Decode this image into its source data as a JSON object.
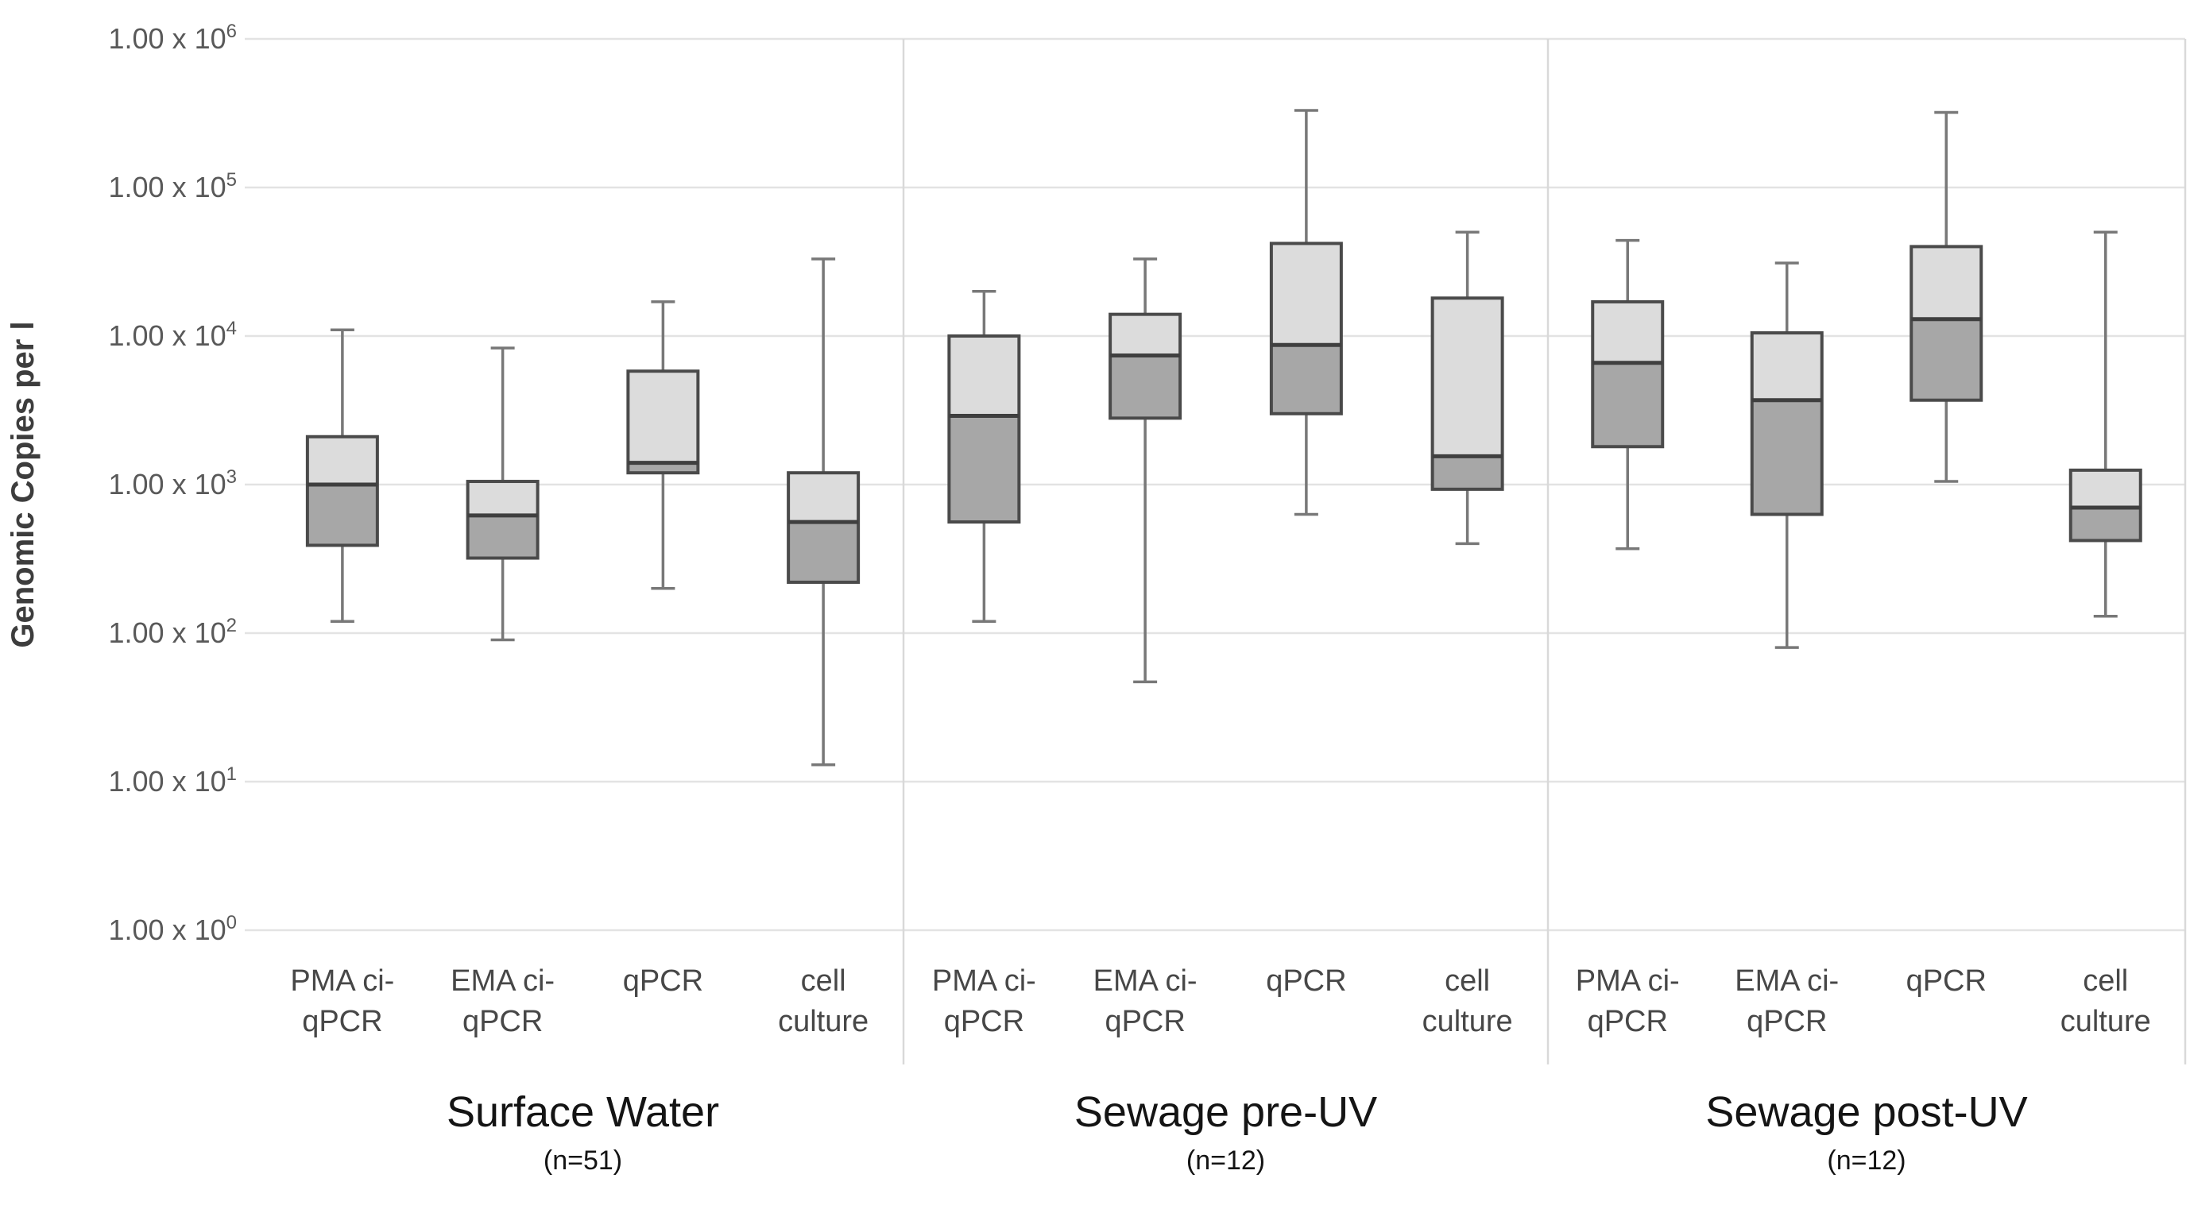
{
  "figure": {
    "background": "#ffffff",
    "y_axis_title": "Genomic Copies per l"
  },
  "style": {
    "box_upper_fill": "#dcdcdc",
    "box_lower_fill": "#a7a7a7",
    "box_border": "#4a4a4a",
    "median_line": "#3f3f3f",
    "whisker_line": "#787878",
    "gridline": "#e3e3e3",
    "separator": "#d9d9d9",
    "tick_text": "#595959",
    "category_text": "#474747",
    "group_title_text": "#141414",
    "axis_title_text": "#3d3d3d"
  },
  "chart_data": {
    "type": "boxplot",
    "title": "",
    "xlabel": "",
    "ylabel": "Genomic Copies per l",
    "y_scale": "log10",
    "ylim": [
      1,
      1000000
    ],
    "grid": "horizontal",
    "legend": "none",
    "y_ticks": [
      {
        "label_base": "1.00 x 10",
        "exp": "0",
        "value": 1
      },
      {
        "label_base": "1.00 x 10",
        "exp": "1",
        "value": 10
      },
      {
        "label_base": "1.00 x 10",
        "exp": "2",
        "value": 100
      },
      {
        "label_base": "1.00 x 10",
        "exp": "3",
        "value": 1000
      },
      {
        "label_base": "1.00 x 10",
        "exp": "4",
        "value": 10000
      },
      {
        "label_base": "1.00 x 10",
        "exp": "5",
        "value": 100000
      },
      {
        "label_base": "1.00 x 10",
        "exp": "6",
        "value": 1000000
      }
    ],
    "groups": [
      {
        "label": "Surface Water",
        "n_label": "(n=51)",
        "boxes": [
          {
            "method": "PMA ci-qPCR",
            "label_lines": [
              "PMA ci-",
              "qPCR"
            ],
            "whisker_low": 120,
            "q1": 390,
            "median": 1000,
            "q3": 2100,
            "whisker_high": 11000
          },
          {
            "method": "EMA ci-qPCR",
            "label_lines": [
              "EMA ci-",
              "qPCR"
            ],
            "whisker_low": 90,
            "q1": 320,
            "median": 620,
            "q3": 1050,
            "whisker_high": 8300
          },
          {
            "method": "qPCR",
            "label_lines": [
              "qPCR",
              ""
            ],
            "whisker_low": 200,
            "q1": 1200,
            "median": 1400,
            "q3": 5800,
            "whisker_high": 17000
          },
          {
            "method": "cell culture",
            "label_lines": [
              "cell",
              "culture"
            ],
            "whisker_low": 13,
            "q1": 220,
            "median": 560,
            "q3": 1200,
            "whisker_high": 33000
          }
        ]
      },
      {
        "label": "Sewage pre-UV",
        "n_label": "(n=12)",
        "boxes": [
          {
            "method": "PMA ci-qPCR",
            "label_lines": [
              "PMA ci-",
              "qPCR"
            ],
            "whisker_low": 120,
            "q1": 560,
            "median": 2900,
            "q3": 10000,
            "whisker_high": 20000
          },
          {
            "method": "EMA ci-qPCR",
            "label_lines": [
              "EMA ci-",
              "qPCR"
            ],
            "whisker_low": 47,
            "q1": 2800,
            "median": 7400,
            "q3": 14000,
            "whisker_high": 33000
          },
          {
            "method": "qPCR",
            "label_lines": [
              "qPCR",
              ""
            ],
            "whisker_low": 630,
            "q1": 3000,
            "median": 8700,
            "q3": 42000,
            "whisker_high": 330000
          },
          {
            "method": "cell culture",
            "label_lines": [
              "cell",
              "culture"
            ],
            "whisker_low": 400,
            "q1": 930,
            "median": 1550,
            "q3": 18000,
            "whisker_high": 50000
          }
        ]
      },
      {
        "label": "Sewage post-UV",
        "n_label": "(n=12)",
        "boxes": [
          {
            "method": "PMA ci-qPCR",
            "label_lines": [
              "PMA ci-",
              "qPCR"
            ],
            "whisker_low": 370,
            "q1": 1800,
            "median": 6600,
            "q3": 17000,
            "whisker_high": 44000
          },
          {
            "method": "EMA ci-qPCR",
            "label_lines": [
              "EMA ci-",
              "qPCR"
            ],
            "whisker_low": 80,
            "q1": 630,
            "median": 3700,
            "q3": 10500,
            "whisker_high": 31000
          },
          {
            "method": "qPCR",
            "label_lines": [
              "qPCR",
              ""
            ],
            "whisker_low": 1050,
            "q1": 3700,
            "median": 13000,
            "q3": 40000,
            "whisker_high": 320000
          },
          {
            "method": "cell culture",
            "label_lines": [
              "cell",
              "culture"
            ],
            "whisker_low": 130,
            "q1": 420,
            "median": 700,
            "q3": 1250,
            "whisker_high": 50000
          }
        ]
      }
    ]
  }
}
